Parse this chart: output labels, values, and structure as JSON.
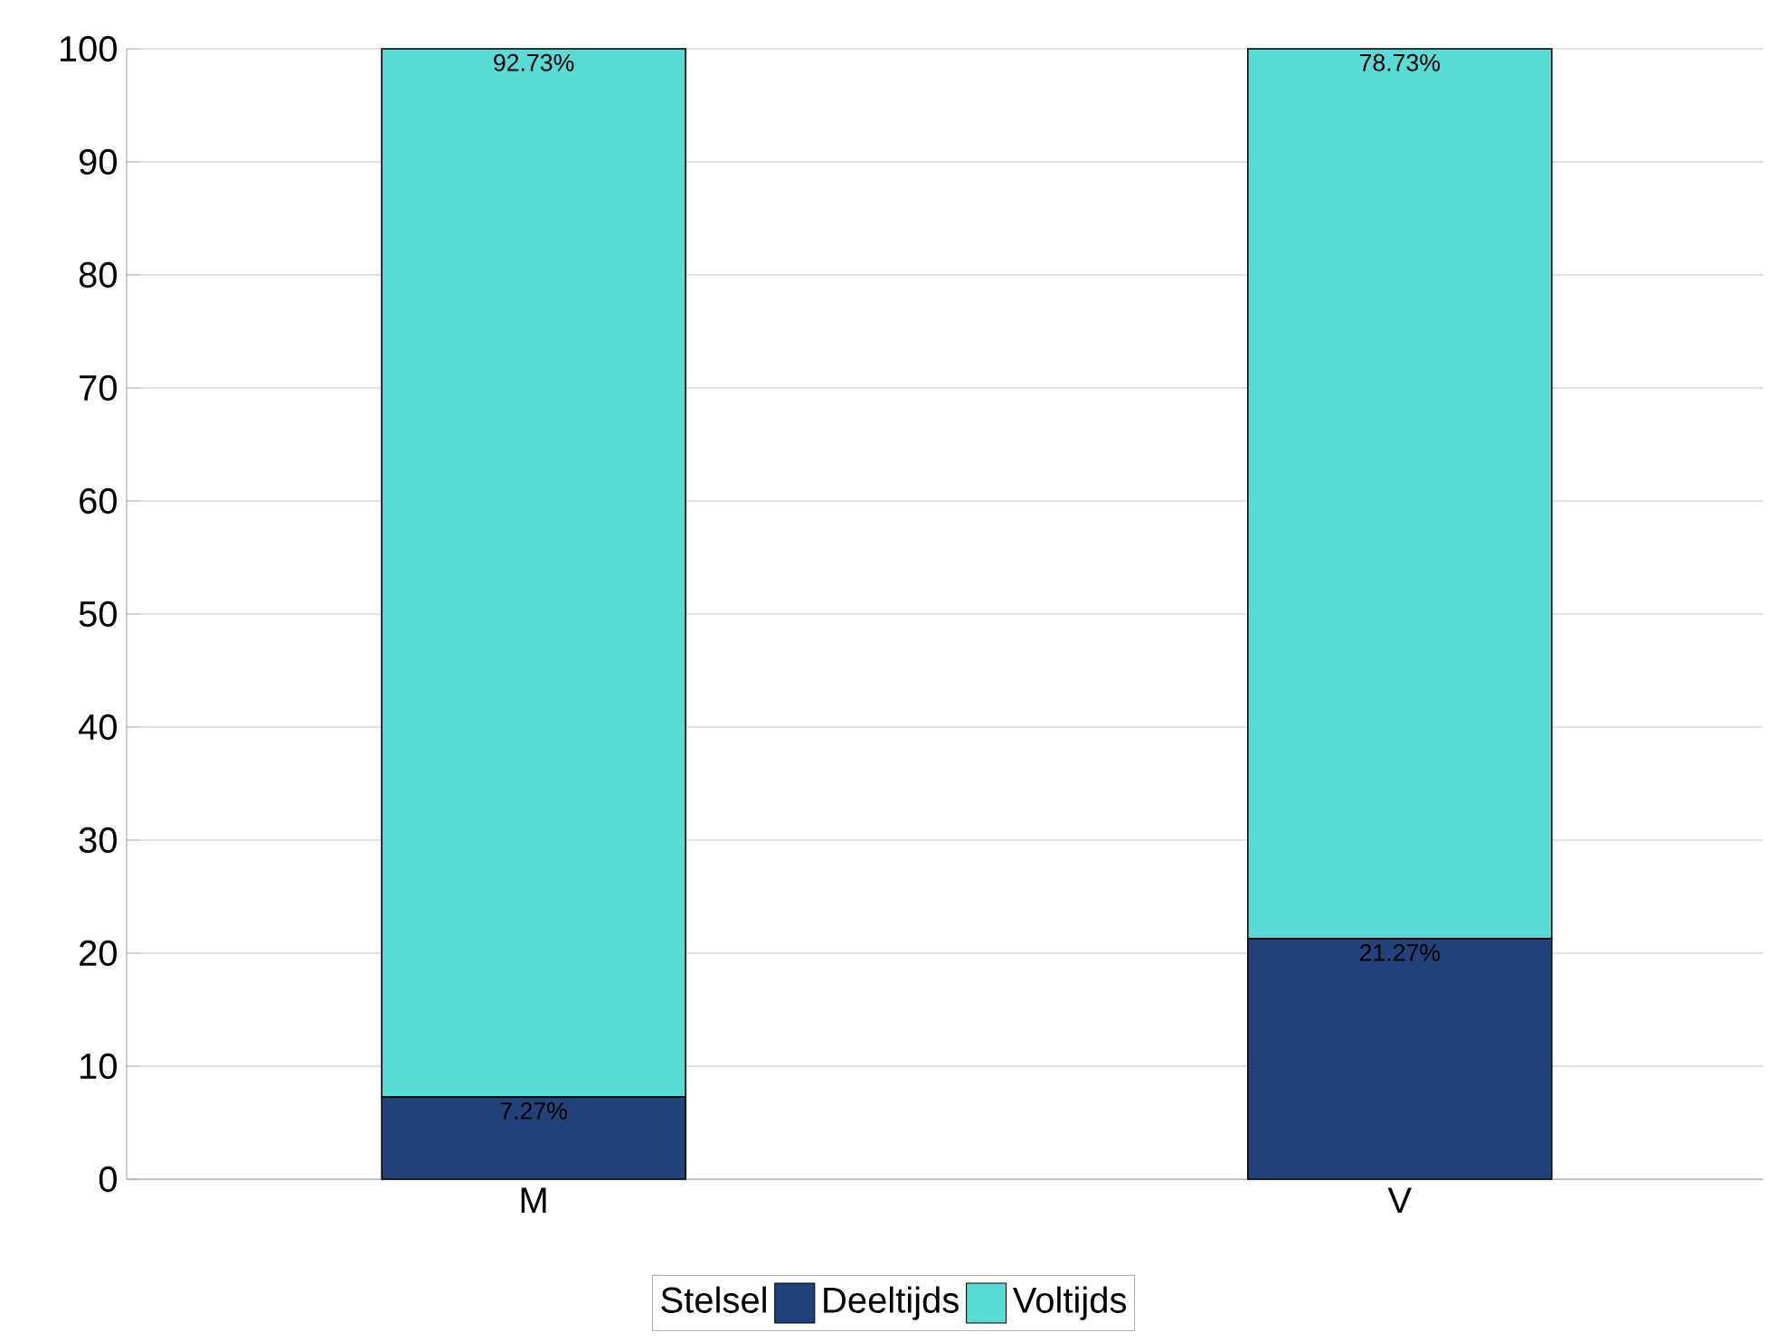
{
  "chart_data": {
    "type": "bar",
    "stacked": true,
    "categories": [
      "M",
      "V"
    ],
    "series": [
      {
        "name": "Deeltijds",
        "color": "#22427a",
        "values": [
          7.27,
          21.27
        ],
        "value_labels": [
          "7.27%",
          "21.27%"
        ]
      },
      {
        "name": "Voltijds",
        "color": "#5cdbd6",
        "values": [
          92.73,
          78.73
        ],
        "value_labels": [
          "92.73%",
          "78.73%"
        ]
      }
    ],
    "ylim": [
      0,
      100
    ],
    "yticks": [
      0,
      10,
      20,
      30,
      40,
      50,
      60,
      70,
      80,
      90,
      100
    ],
    "grid": "y",
    "legend": "bottom",
    "legend_title": "Stelsel"
  }
}
